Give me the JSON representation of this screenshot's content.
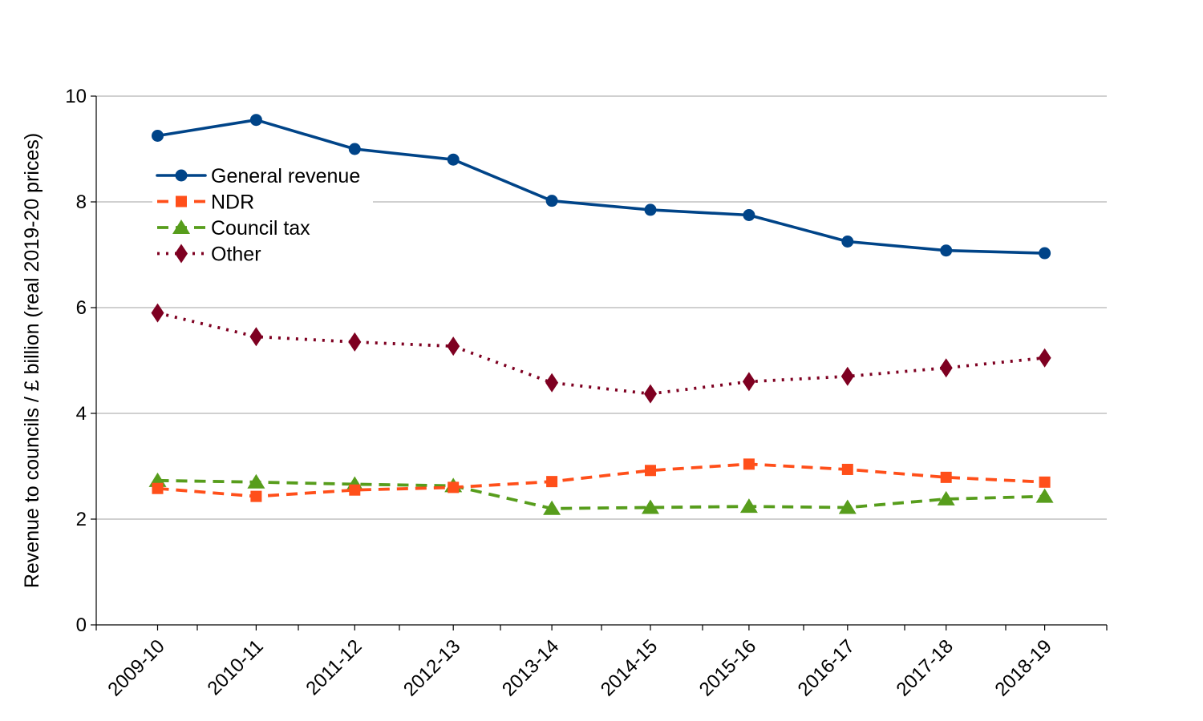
{
  "chart_data": {
    "type": "line",
    "title": "",
    "xlabel": "",
    "ylabel": "Revenue to councils / £ billion (real 2019-20 prices)",
    "ylim": [
      0,
      10
    ],
    "yticks": [
      0,
      2,
      4,
      6,
      8,
      10
    ],
    "grid": true,
    "legend_position": "top-left",
    "categories": [
      "2009-10",
      "2010-11",
      "2011-12",
      "2012-13",
      "2013-14",
      "2014-15",
      "2015-16",
      "2016-17",
      "2017-18",
      "2018-19"
    ],
    "series": [
      {
        "name": "General revenue",
        "color": "#004488",
        "line_style": "solid",
        "marker": "circle",
        "values": [
          9.25,
          9.55,
          9.0,
          8.8,
          8.02,
          7.85,
          7.75,
          7.25,
          7.08,
          7.03
        ]
      },
      {
        "name": "NDR",
        "color": "#ff4f1a",
        "line_style": "dashed",
        "marker": "square",
        "values": [
          2.58,
          2.43,
          2.55,
          2.6,
          2.71,
          2.92,
          3.04,
          2.94,
          2.79,
          2.7
        ]
      },
      {
        "name": "Council tax",
        "color": "#579d1c",
        "line_style": "dashed",
        "marker": "triangle",
        "values": [
          2.73,
          2.7,
          2.66,
          2.63,
          2.2,
          2.22,
          2.24,
          2.22,
          2.38,
          2.43
        ]
      },
      {
        "name": "Other",
        "color": "#7e0021",
        "line_style": "dotted",
        "marker": "diamond",
        "values": [
          5.9,
          5.45,
          5.35,
          5.27,
          4.58,
          4.37,
          4.6,
          4.7,
          4.86,
          5.05
        ]
      }
    ]
  }
}
